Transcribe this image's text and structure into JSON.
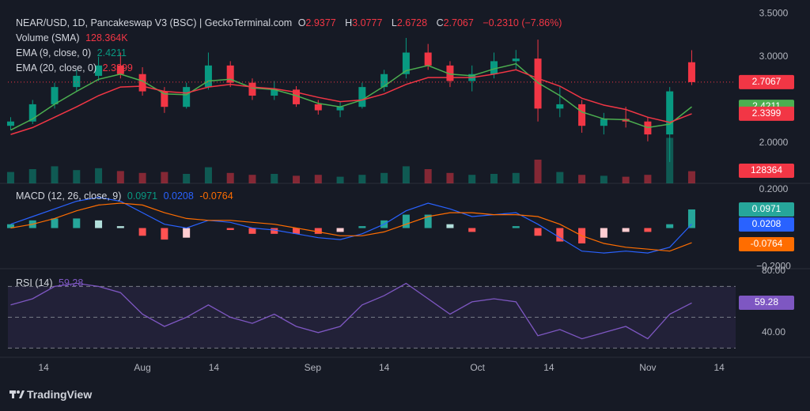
{
  "chart_data": [
    {
      "type": "candlestick",
      "title": "NEAR/USD, 1D, Pancakeswap V3 (BSC) | GeckoTerminal.com",
      "ohlc_letters": [
        "O",
        "H",
        "L",
        "C"
      ],
      "change_label": "−0.2310 (−7.86%)",
      "x": [
        -6,
        -2,
        2,
        6,
        10,
        14,
        18,
        22,
        26,
        30,
        34,
        38,
        42,
        46,
        50,
        54,
        58,
        62,
        66,
        70,
        74,
        78,
        82,
        86,
        90,
        94,
        98,
        102,
        106,
        110,
        114,
        118
      ],
      "open": [
        2.2,
        2.25,
        2.45,
        2.65,
        2.78,
        2.9,
        2.8,
        2.6,
        2.42,
        2.65,
        2.9,
        2.7,
        2.55,
        2.62,
        2.45,
        2.38,
        2.42,
        2.65,
        2.8,
        3.05,
        2.9,
        2.72,
        2.8,
        2.95,
        2.98,
        2.4,
        2.45,
        2.2,
        2.28,
        2.25,
        2.1,
        2.9377
      ],
      "high": [
        2.3,
        2.5,
        2.7,
        2.85,
        3.0,
        3.05,
        2.88,
        2.65,
        2.7,
        3.05,
        2.95,
        2.75,
        2.72,
        2.66,
        2.5,
        2.48,
        2.7,
        2.85,
        3.22,
        3.15,
        2.95,
        2.9,
        3.05,
        3.08,
        3.2,
        2.65,
        2.5,
        2.35,
        2.42,
        2.3,
        2.65,
        3.0777
      ],
      "low": [
        2.15,
        2.22,
        2.4,
        2.6,
        2.72,
        2.75,
        2.55,
        2.35,
        2.4,
        2.62,
        2.65,
        2.5,
        2.5,
        2.42,
        2.33,
        2.3,
        2.4,
        2.6,
        2.75,
        2.85,
        2.65,
        2.6,
        2.75,
        2.85,
        2.25,
        2.3,
        2.12,
        2.1,
        2.18,
        2.02,
        1.78,
        2.6728
      ],
      "close": [
        2.25,
        2.45,
        2.65,
        2.78,
        2.9,
        2.8,
        2.6,
        2.42,
        2.65,
        2.9,
        2.7,
        2.55,
        2.62,
        2.45,
        2.38,
        2.42,
        2.65,
        2.8,
        3.05,
        2.9,
        2.72,
        2.8,
        2.95,
        2.98,
        2.4,
        2.45,
        2.2,
        2.28,
        2.25,
        2.1,
        2.6,
        2.7067
      ],
      "colors": {
        "up": "#089981",
        "down": "#f23645"
      },
      "volume": {
        "name": "Volume (SMA)",
        "lim": [
          0,
          1000000
        ],
        "values": [
          120000,
          150000,
          180000,
          140000,
          160000,
          130000,
          110000,
          120000,
          100000,
          170000,
          110000,
          90000,
          100000,
          80000,
          90000,
          70000,
          90000,
          110000,
          180000,
          150000,
          110000,
          90000,
          100000,
          110000,
          250000,
          120000,
          90000,
          80000,
          70000,
          90000,
          480000,
          128364
        ],
        "last_label": "128.364K"
      },
      "series": [
        {
          "name": "EMA (9, close, 0)",
          "color": "#4caf50",
          "values": [
            2.15,
            2.28,
            2.45,
            2.6,
            2.74,
            2.8,
            2.72,
            2.57,
            2.56,
            2.72,
            2.74,
            2.64,
            2.62,
            2.55,
            2.46,
            2.42,
            2.5,
            2.66,
            2.84,
            2.9,
            2.8,
            2.78,
            2.86,
            2.92,
            2.7,
            2.55,
            2.36,
            2.28,
            2.27,
            2.18,
            2.22,
            2.4211
          ]
        },
        {
          "name": "EMA (20, close, 0)",
          "color": "#f23645",
          "values": [
            2.1,
            2.18,
            2.3,
            2.42,
            2.55,
            2.65,
            2.66,
            2.6,
            2.58,
            2.65,
            2.68,
            2.65,
            2.63,
            2.59,
            2.53,
            2.48,
            2.5,
            2.57,
            2.68,
            2.76,
            2.76,
            2.76,
            2.8,
            2.85,
            2.75,
            2.66,
            2.52,
            2.44,
            2.39,
            2.3,
            2.24,
            2.3399
          ]
        }
      ],
      "ylim": [
        1.532,
        3.66
      ],
      "yticks": [
        {
          "value": 2.0,
          "label": "2.0000"
        },
        {
          "value": 3.0,
          "label": "3.0000"
        },
        {
          "value": 3.5,
          "label": "3.5000"
        }
      ],
      "xlim": [
        -6.5,
        126
      ],
      "xticks": [
        {
          "value": 0,
          "label": "14"
        },
        {
          "value": 18,
          "label": "Aug"
        },
        {
          "value": 31,
          "label": "14"
        },
        {
          "value": 49,
          "label": "Sep"
        },
        {
          "value": 62,
          "label": "14"
        },
        {
          "value": 79,
          "label": "Oct"
        },
        {
          "value": 92,
          "label": "14"
        },
        {
          "value": 110,
          "label": "Nov"
        },
        {
          "value": 123,
          "label": "14"
        }
      ]
    },
    {
      "type": "macd",
      "name": "MACD (12, 26, close, 9)",
      "histogram": {
        "values": [
          0.02,
          0.04,
          0.05,
          0.05,
          0.04,
          0.01,
          -0.04,
          -0.06,
          -0.05,
          0.0,
          -0.01,
          -0.03,
          -0.03,
          -0.03,
          -0.03,
          -0.02,
          0.01,
          0.04,
          0.07,
          0.07,
          0.02,
          -0.02,
          0.0,
          0.01,
          -0.04,
          -0.07,
          -0.08,
          -0.05,
          -0.02,
          -0.02,
          0.02,
          0.0971
        ],
        "colors": [
          "#26a69a",
          "#b2dfdb",
          "#ff5252",
          "#ffcdd2"
        ]
      },
      "series": [
        {
          "color": "#2962ff",
          "values": [
            0.02,
            0.06,
            0.1,
            0.14,
            0.16,
            0.14,
            0.08,
            0.02,
            0.0,
            0.04,
            0.03,
            0.0,
            -0.01,
            -0.03,
            -0.05,
            -0.06,
            -0.03,
            0.02,
            0.09,
            0.13,
            0.1,
            0.06,
            0.07,
            0.08,
            0.02,
            -0.05,
            -0.12,
            -0.13,
            -0.12,
            -0.13,
            -0.1,
            0.0208
          ]
        },
        {
          "color": "#ff6d00",
          "values": [
            0.0,
            0.02,
            0.05,
            0.09,
            0.12,
            0.13,
            0.12,
            0.08,
            0.05,
            0.04,
            0.04,
            0.03,
            0.02,
            0.0,
            -0.02,
            -0.04,
            -0.04,
            -0.02,
            0.02,
            0.06,
            0.08,
            0.08,
            0.07,
            0.07,
            0.06,
            0.02,
            -0.04,
            -0.08,
            -0.1,
            -0.11,
            -0.12,
            -0.0764
          ]
        }
      ],
      "ylim": [
        -0.212,
        0.233
      ],
      "yticks": [
        {
          "value": 0.2,
          "label": "0.2000"
        },
        {
          "value": -0.2,
          "label": "−0.2000"
        }
      ]
    },
    {
      "type": "rsi",
      "name": "RSI (14)",
      "color": "#7e57c2",
      "values": [
        58,
        62,
        70,
        72,
        70,
        66,
        52,
        44,
        50,
        58,
        50,
        46,
        52,
        44,
        40,
        44,
        58,
        64,
        72,
        62,
        52,
        60,
        62,
        60,
        38,
        42,
        36,
        40,
        44,
        36,
        52,
        59.28
      ],
      "bands": [
        30,
        50,
        70
      ],
      "ylim": [
        24,
        81.5
      ],
      "yticks": [
        {
          "value": 80,
          "label": "80.00"
        },
        {
          "value": 40,
          "label": "40.00"
        }
      ]
    }
  ],
  "branding": "TradingView"
}
